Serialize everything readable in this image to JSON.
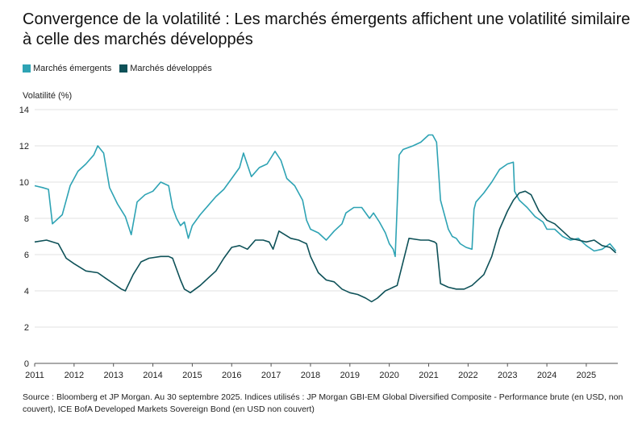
{
  "title": "Convergence de la volatilité : Les marchés émergents affichent une volatilité similaire à celle des marchés développés",
  "source": "Source : Bloomberg et JP Morgan. Au 30 septembre 2025. Indices utilisés : JP Morgan GBI-EM Global Diversified Composite - Performance brute (en USD, non couvert), ICE BofA Developed Markets Sovereign Bond (en USD non couvert)",
  "chart_data": {
    "type": "line",
    "title": "Convergence de la volatilité : Les marchés émergents affichent une volatilité similaire à celle des marchés développés",
    "ylabel": "Volatilité (%)",
    "xlabel": "",
    "ylim": [
      0,
      14
    ],
    "yticks": [
      0,
      2,
      4,
      6,
      8,
      10,
      12,
      14
    ],
    "xlim": [
      2011,
      2025.8
    ],
    "xticks": [
      "2011",
      "2012",
      "2013",
      "2014",
      "2015",
      "2016",
      "2017",
      "2018",
      "2019",
      "2020",
      "2021",
      "2022",
      "2023",
      "2024",
      "2025"
    ],
    "grid": "horizontal",
    "legend_position": "top-left",
    "series": [
      {
        "name": "Marchés émergents",
        "color": "#2ea3b4",
        "x": [
          2011.0,
          2011.2,
          2011.35,
          2011.45,
          2011.7,
          2011.9,
          2012.1,
          2012.3,
          2012.5,
          2012.6,
          2012.75,
          2012.9,
          2013.1,
          2013.3,
          2013.45,
          2013.6,
          2013.8,
          2014.0,
          2014.2,
          2014.4,
          2014.5,
          2014.6,
          2014.7,
          2014.8,
          2014.9,
          2015.0,
          2015.2,
          2015.4,
          2015.6,
          2015.8,
          2016.0,
          2016.2,
          2016.3,
          2016.5,
          2016.7,
          2016.9,
          2017.1,
          2017.25,
          2017.4,
          2017.6,
          2017.8,
          2017.9,
          2018.0,
          2018.2,
          2018.4,
          2018.6,
          2018.8,
          2018.9,
          2019.1,
          2019.3,
          2019.5,
          2019.6,
          2019.75,
          2019.9,
          2020.0,
          2020.1,
          2020.15,
          2020.25,
          2020.35,
          2020.6,
          2020.8,
          2021.0,
          2021.1,
          2021.2,
          2021.3,
          2021.5,
          2021.6,
          2021.7,
          2021.8,
          2021.95,
          2022.1,
          2022.15,
          2022.2,
          2022.4,
          2022.6,
          2022.8,
          2023.0,
          2023.15,
          2023.18,
          2023.3,
          2023.5,
          2023.7,
          2023.9,
          2024.0,
          2024.2,
          2024.4,
          2024.6,
          2024.8,
          2025.0,
          2025.2,
          2025.4,
          2025.6,
          2025.75
        ],
        "values": [
          9.8,
          9.7,
          9.6,
          7.7,
          8.2,
          9.8,
          10.6,
          11.0,
          11.5,
          12.0,
          11.6,
          9.7,
          8.8,
          8.1,
          7.1,
          8.9,
          9.3,
          9.5,
          10.0,
          9.8,
          8.6,
          8.0,
          7.6,
          7.8,
          6.9,
          7.6,
          8.2,
          8.7,
          9.2,
          9.6,
          10.2,
          10.8,
          11.6,
          10.3,
          10.8,
          11.0,
          11.7,
          11.2,
          10.2,
          9.8,
          9.0,
          7.9,
          7.4,
          7.2,
          6.8,
          7.3,
          7.7,
          8.3,
          8.6,
          8.6,
          8.0,
          8.3,
          7.8,
          7.2,
          6.6,
          6.3,
          5.9,
          11.5,
          11.8,
          12.0,
          12.2,
          12.6,
          12.6,
          12.2,
          9.0,
          7.4,
          7.0,
          6.9,
          6.6,
          6.4,
          6.3,
          8.5,
          8.9,
          9.4,
          10.0,
          10.7,
          11.0,
          11.1,
          9.5,
          9.0,
          8.6,
          8.1,
          7.8,
          7.4,
          7.4,
          7.0,
          6.8,
          6.9,
          6.5,
          6.2,
          6.3,
          6.6,
          6.2
        ]
      },
      {
        "name": "Marchés développés",
        "color": "#0e5158",
        "x": [
          2011.0,
          2011.3,
          2011.6,
          2011.8,
          2012.0,
          2012.3,
          2012.6,
          2012.8,
          2013.0,
          2013.2,
          2013.3,
          2013.5,
          2013.7,
          2013.9,
          2014.2,
          2014.4,
          2014.5,
          2014.6,
          2014.7,
          2014.8,
          2014.95,
          2015.2,
          2015.4,
          2015.6,
          2015.8,
          2016.0,
          2016.2,
          2016.4,
          2016.6,
          2016.8,
          2016.95,
          2017.05,
          2017.2,
          2017.5,
          2017.7,
          2017.8,
          2017.9,
          2018.0,
          2018.2,
          2018.4,
          2018.6,
          2018.8,
          2019.0,
          2019.2,
          2019.4,
          2019.55,
          2019.7,
          2019.9,
          2020.0,
          2020.1,
          2020.2,
          2020.5,
          2020.8,
          2021.0,
          2021.15,
          2021.2,
          2021.3,
          2021.5,
          2021.7,
          2021.9,
          2022.1,
          2022.4,
          2022.6,
          2022.8,
          2023.0,
          2023.15,
          2023.3,
          2023.45,
          2023.6,
          2023.8,
          2024.0,
          2024.2,
          2024.4,
          2024.6,
          2024.8,
          2025.0,
          2025.2,
          2025.4,
          2025.6,
          2025.75
        ],
        "values": [
          6.7,
          6.8,
          6.6,
          5.8,
          5.5,
          5.1,
          5.0,
          4.7,
          4.4,
          4.1,
          4.0,
          4.9,
          5.6,
          5.8,
          5.9,
          5.9,
          5.8,
          5.2,
          4.6,
          4.1,
          3.9,
          4.3,
          4.7,
          5.1,
          5.8,
          6.4,
          6.5,
          6.3,
          6.8,
          6.8,
          6.7,
          6.3,
          7.3,
          6.9,
          6.8,
          6.7,
          6.6,
          5.9,
          5.0,
          4.6,
          4.5,
          4.1,
          3.9,
          3.8,
          3.6,
          3.4,
          3.6,
          4.0,
          4.1,
          4.2,
          4.3,
          6.9,
          6.8,
          6.8,
          6.7,
          6.6,
          4.4,
          4.2,
          4.1,
          4.1,
          4.3,
          4.9,
          5.9,
          7.4,
          8.4,
          9.0,
          9.4,
          9.5,
          9.3,
          8.4,
          7.9,
          7.7,
          7.3,
          6.9,
          6.8,
          6.7,
          6.8,
          6.5,
          6.4,
          6.1
        ]
      }
    ]
  }
}
